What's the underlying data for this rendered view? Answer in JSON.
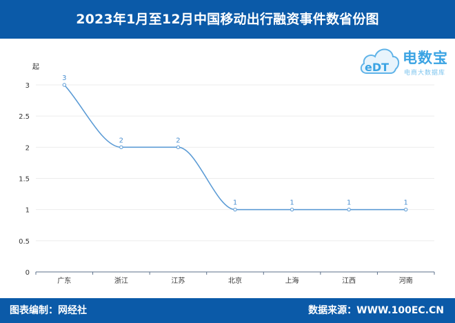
{
  "header": {
    "title": "2023年1月至12月中国移动出行融资事件数省份图"
  },
  "logo": {
    "name": "电数宝",
    "mark_text": "eDT",
    "subtitle": "电商大数据库"
  },
  "footer": {
    "left": "图表编制：网经社",
    "right": "数据来源：WWW.100EC.CN"
  },
  "colors": {
    "brand_blue": "#0b5aa8",
    "line": "#5b9bd5",
    "label": "#4a8fd0"
  },
  "chart_data": {
    "type": "line",
    "title": "2023年1月至12月中国移动出行融资事件数省份图",
    "ylabel": "起",
    "xlabel": "",
    "categories": [
      "广东",
      "浙江",
      "江苏",
      "北京",
      "上海",
      "江西",
      "河南"
    ],
    "values": [
      3,
      2,
      2,
      1,
      1,
      1,
      1
    ],
    "ylim": [
      0,
      3
    ],
    "yticks": [
      "0",
      "0.5",
      "1",
      "1.5",
      "2",
      "2.5",
      "3"
    ],
    "smooth": true,
    "grid": true,
    "legend": "none"
  }
}
